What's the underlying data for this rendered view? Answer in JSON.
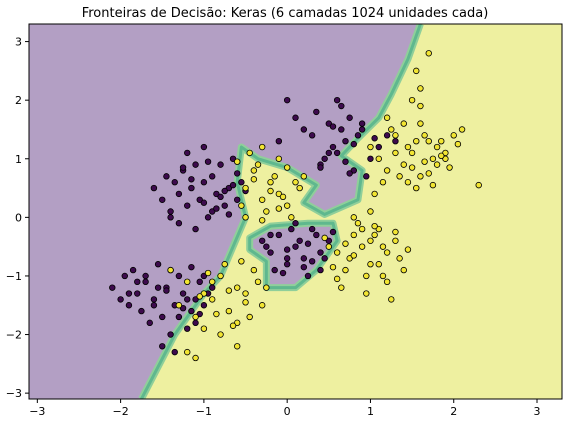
{
  "chart_data": {
    "type": "scatter",
    "title": "Fronteiras de Decisão: Keras (6 camadas 1024 unidades cada)",
    "xlabel": "",
    "ylabel": "",
    "xlim": [
      -3.1,
      3.3
    ],
    "ylim": [
      -3.1,
      3.3
    ],
    "x_ticks": [
      -3,
      -2,
      -1,
      0,
      1,
      2,
      3
    ],
    "y_ticks": [
      -3,
      -2,
      -1,
      0,
      1,
      2,
      3
    ],
    "grid": false,
    "legend": "none",
    "colors": {
      "class0_region": "#b39fc4",
      "class1_region": "#eef0a0",
      "boundary_band": "#5fb88e",
      "class0_point": "#3d0a4d",
      "class1_point": "#f2e532",
      "point_edge": "#000000"
    },
    "decision_boundary": [
      [
        -1.75,
        -3.1
      ],
      [
        -1.35,
        -2.0
      ],
      [
        -1.0,
        -1.3
      ],
      [
        -0.8,
        -1.0
      ],
      [
        -0.65,
        -0.5
      ],
      [
        -0.5,
        0.0
      ],
      [
        -0.6,
        0.6
      ],
      [
        -0.55,
        1.2
      ],
      [
        -0.35,
        1.0
      ],
      [
        0.0,
        0.85
      ],
      [
        0.35,
        0.55
      ],
      [
        0.2,
        0.25
      ],
      [
        0.45,
        0.05
      ],
      [
        0.85,
        0.3
      ],
      [
        0.9,
        0.8
      ],
      [
        0.65,
        1.05
      ],
      [
        0.85,
        1.35
      ],
      [
        1.1,
        1.7
      ],
      [
        1.25,
        2.1
      ],
      [
        1.45,
        2.7
      ],
      [
        1.6,
        3.3
      ]
    ],
    "class0_region_enclave": [
      [
        -0.45,
        -0.35
      ],
      [
        -0.2,
        -0.15
      ],
      [
        0.25,
        -0.1
      ],
      [
        0.55,
        -0.1
      ],
      [
        0.6,
        -0.4
      ],
      [
        0.35,
        -0.9
      ],
      [
        0.1,
        -1.2
      ],
      [
        -0.25,
        -1.2
      ],
      [
        -0.25,
        -0.75
      ],
      [
        -0.45,
        -0.55
      ]
    ],
    "series": [
      {
        "class": 0,
        "x": [
          -2.1,
          -1.95,
          -1.9,
          -1.85,
          -1.8,
          -1.75,
          -1.7,
          -1.65,
          -1.6,
          -1.55,
          -1.5,
          -1.45,
          -1.4,
          -1.35,
          -1.3,
          -1.25,
          -1.2,
          -1.15,
          -1.1,
          -1.05,
          -1.0,
          -0.95,
          -0.9,
          -2.0,
          -1.7,
          -1.5,
          -1.3,
          -1.1,
          -1.9,
          -1.6,
          -1.4,
          -1.2,
          -1.0,
          -1.8,
          -1.45,
          -1.25,
          -1.05,
          -1.35,
          -1.55,
          -1.15,
          -1.6,
          -1.5,
          -1.45,
          -1.4,
          -1.35,
          -1.3,
          -1.25,
          -1.2,
          -1.15,
          -1.1,
          -1.05,
          -1.0,
          -0.95,
          -0.9,
          -0.85,
          -0.8,
          -0.75,
          -0.7,
          -0.65,
          -0.6,
          -0.55,
          -1.3,
          -1.1,
          -0.9,
          -0.7,
          -1.2,
          -1.0,
          -0.8,
          -0.6,
          -1.4,
          -0.95,
          -0.75,
          -1.0,
          -0.85,
          -1.15,
          -0.65,
          -1.25,
          -0.5,
          -0.3,
          -0.2,
          -0.1,
          0.0,
          0.1,
          0.2,
          0.3,
          0.4,
          0.5,
          -0.15,
          0.05,
          0.25,
          0.45,
          -0.25,
          0.15,
          0.35,
          0.0,
          0.2,
          -0.05,
          0.3,
          0.1,
          0.4,
          -0.2,
          0.55,
          0.0,
          0.25,
          0.3,
          0.4,
          0.5,
          0.6,
          0.7,
          0.8,
          0.9,
          1.0,
          1.1,
          0.35,
          0.55,
          0.75,
          0.95,
          0.45,
          0.65,
          0.85,
          0.5,
          0.7,
          0.9,
          0.6,
          0.8,
          0.2,
          0.1,
          0.0,
          -0.1,
          0.65,
          0.4,
          1.05,
          0.75,
          0.55,
          1.2,
          1.3
        ],
        "y": [
          -1.2,
          -1.0,
          -1.5,
          -0.9,
          -1.3,
          -1.6,
          -1.1,
          -1.8,
          -1.4,
          -0.8,
          -1.7,
          -1.2,
          -2.0,
          -1.5,
          -1.0,
          -1.3,
          -1.9,
          -1.6,
          -1.4,
          -1.1,
          -1.5,
          -1.3,
          -1.2,
          -1.4,
          -1.0,
          -2.2,
          -1.7,
          -1.8,
          -1.3,
          -1.5,
          -0.9,
          -1.4,
          -1.0,
          -1.1,
          -1.25,
          -1.55,
          -1.65,
          -2.3,
          -1.2,
          -0.85,
          0.5,
          0.3,
          0.7,
          0.1,
          0.6,
          0.4,
          0.8,
          0.2,
          0.5,
          0.9,
          0.3,
          0.6,
          0.0,
          0.7,
          0.4,
          0.9,
          0.2,
          0.5,
          1.0,
          0.3,
          0.6,
          -0.1,
          -0.2,
          0.1,
          0.05,
          1.1,
          1.2,
          0.35,
          0.75,
          0.0,
          0.95,
          0.45,
          0.25,
          0.15,
          0.65,
          0.55,
          0.85,
          0.45,
          -0.4,
          -0.6,
          -0.3,
          -0.8,
          -0.5,
          -0.7,
          -0.2,
          -0.6,
          -0.4,
          -0.9,
          -0.2,
          -1.0,
          -0.7,
          -0.5,
          -0.4,
          -0.3,
          -0.55,
          -0.85,
          -0.95,
          -0.75,
          -0.1,
          -0.9,
          -0.3,
          -0.25,
          -0.7,
          -0.45,
          1.4,
          0.9,
          1.6,
          1.1,
          1.3,
          0.8,
          1.5,
          1.0,
          1.2,
          1.8,
          1.2,
          1.7,
          0.7,
          1.0,
          1.9,
          1.4,
          1.1,
          0.95,
          1.6,
          2.0,
          1.25,
          1.5,
          1.7,
          2.0,
          1.3,
          1.5,
          0.85,
          1.35,
          0.75,
          1.55,
          1.4,
          1.3
        ]
      },
      {
        "class": 1,
        "x": [
          -1.4,
          -1.2,
          -1.0,
          -0.8,
          -0.6,
          -0.4,
          -1.3,
          -1.1,
          -0.9,
          -0.7,
          -0.5,
          -0.3,
          -1.0,
          -0.8,
          -0.6,
          -0.9,
          -0.7,
          -0.5,
          -1.2,
          -1.1,
          -0.85,
          -0.65,
          -0.45,
          -0.55,
          -0.75,
          -0.95,
          -0.35,
          -0.25,
          -1.05,
          -0.6,
          -0.5,
          -0.4,
          -0.3,
          -0.2,
          -0.1,
          0.0,
          0.1,
          -0.45,
          -0.35,
          -0.25,
          -0.15,
          -0.05,
          0.05,
          -0.55,
          -0.3,
          -0.1,
          0.15,
          -0.2,
          0.0,
          -0.4,
          -0.6,
          -0.5,
          -0.3,
          -0.1,
          0.2,
          0.6,
          0.7,
          0.8,
          0.9,
          1.0,
          1.1,
          1.2,
          1.3,
          1.4,
          0.65,
          0.75,
          0.85,
          0.95,
          1.05,
          1.15,
          1.25,
          1.35,
          0.9,
          1.0,
          1.1,
          1.2,
          0.7,
          0.8,
          1.0,
          1.3,
          0.6,
          0.95,
          1.15,
          0.5,
          0.55,
          1.45,
          1.05,
          0.8,
          0.45,
          1.0,
          1.1,
          1.2,
          1.3,
          1.4,
          1.5,
          1.6,
          1.7,
          1.8,
          1.9,
          2.0,
          1.15,
          1.25,
          1.35,
          1.45,
          1.55,
          1.65,
          1.75,
          1.85,
          1.3,
          1.5,
          1.7,
          1.9,
          1.4,
          1.6,
          1.8,
          1.2,
          1.55,
          1.75,
          2.1,
          2.3,
          1.65,
          1.45,
          1.95,
          1.05,
          1.6,
          2.05,
          1.85,
          1.6,
          1.7,
          1.55,
          1.5
        ],
        "y": [
          -0.9,
          -1.1,
          -1.3,
          -1.0,
          -1.2,
          -0.9,
          -1.5,
          -1.7,
          -1.4,
          -1.6,
          -1.3,
          -1.5,
          -1.9,
          -2.0,
          -1.8,
          -1.1,
          -1.25,
          -1.45,
          -2.3,
          -2.4,
          -1.65,
          -1.85,
          -1.7,
          -0.75,
          -0.8,
          -0.95,
          -1.1,
          -1.2,
          -1.35,
          -2.2,
          0.5,
          0.8,
          0.3,
          0.6,
          0.4,
          0.2,
          0.6,
          1.1,
          0.9,
          0.1,
          0.7,
          0.35,
          0.0,
          0.2,
          1.2,
          1.0,
          0.5,
          0.45,
          0.85,
          0.65,
          0.95,
          0.0,
          -0.05,
          0.15,
          0.7,
          -0.6,
          -0.9,
          -0.3,
          -0.5,
          -0.8,
          -0.2,
          -0.6,
          -0.4,
          -0.9,
          -1.2,
          -0.7,
          -0.1,
          -1.0,
          -0.3,
          -0.5,
          -1.4,
          -0.7,
          -0.2,
          -0.4,
          -0.8,
          -1.1,
          -0.45,
          -0.65,
          0.1,
          -0.25,
          -1.05,
          -1.3,
          -1.0,
          -0.5,
          -0.85,
          -0.55,
          -0.15,
          0.0,
          -0.35,
          1.2,
          1.0,
          0.8,
          1.4,
          0.9,
          1.1,
          0.7,
          1.3,
          0.9,
          1.0,
          1.4,
          0.6,
          1.5,
          0.7,
          1.2,
          0.5,
          1.4,
          1.0,
          1.3,
          1.1,
          0.85,
          0.75,
          1.1,
          1.6,
          1.6,
          1.2,
          1.7,
          1.3,
          0.55,
          1.5,
          0.55,
          0.95,
          0.6,
          0.85,
          0.4,
          1.9,
          1.25,
          1.05,
          2.2,
          2.8,
          2.5,
          2.0
        ]
      }
    ]
  }
}
